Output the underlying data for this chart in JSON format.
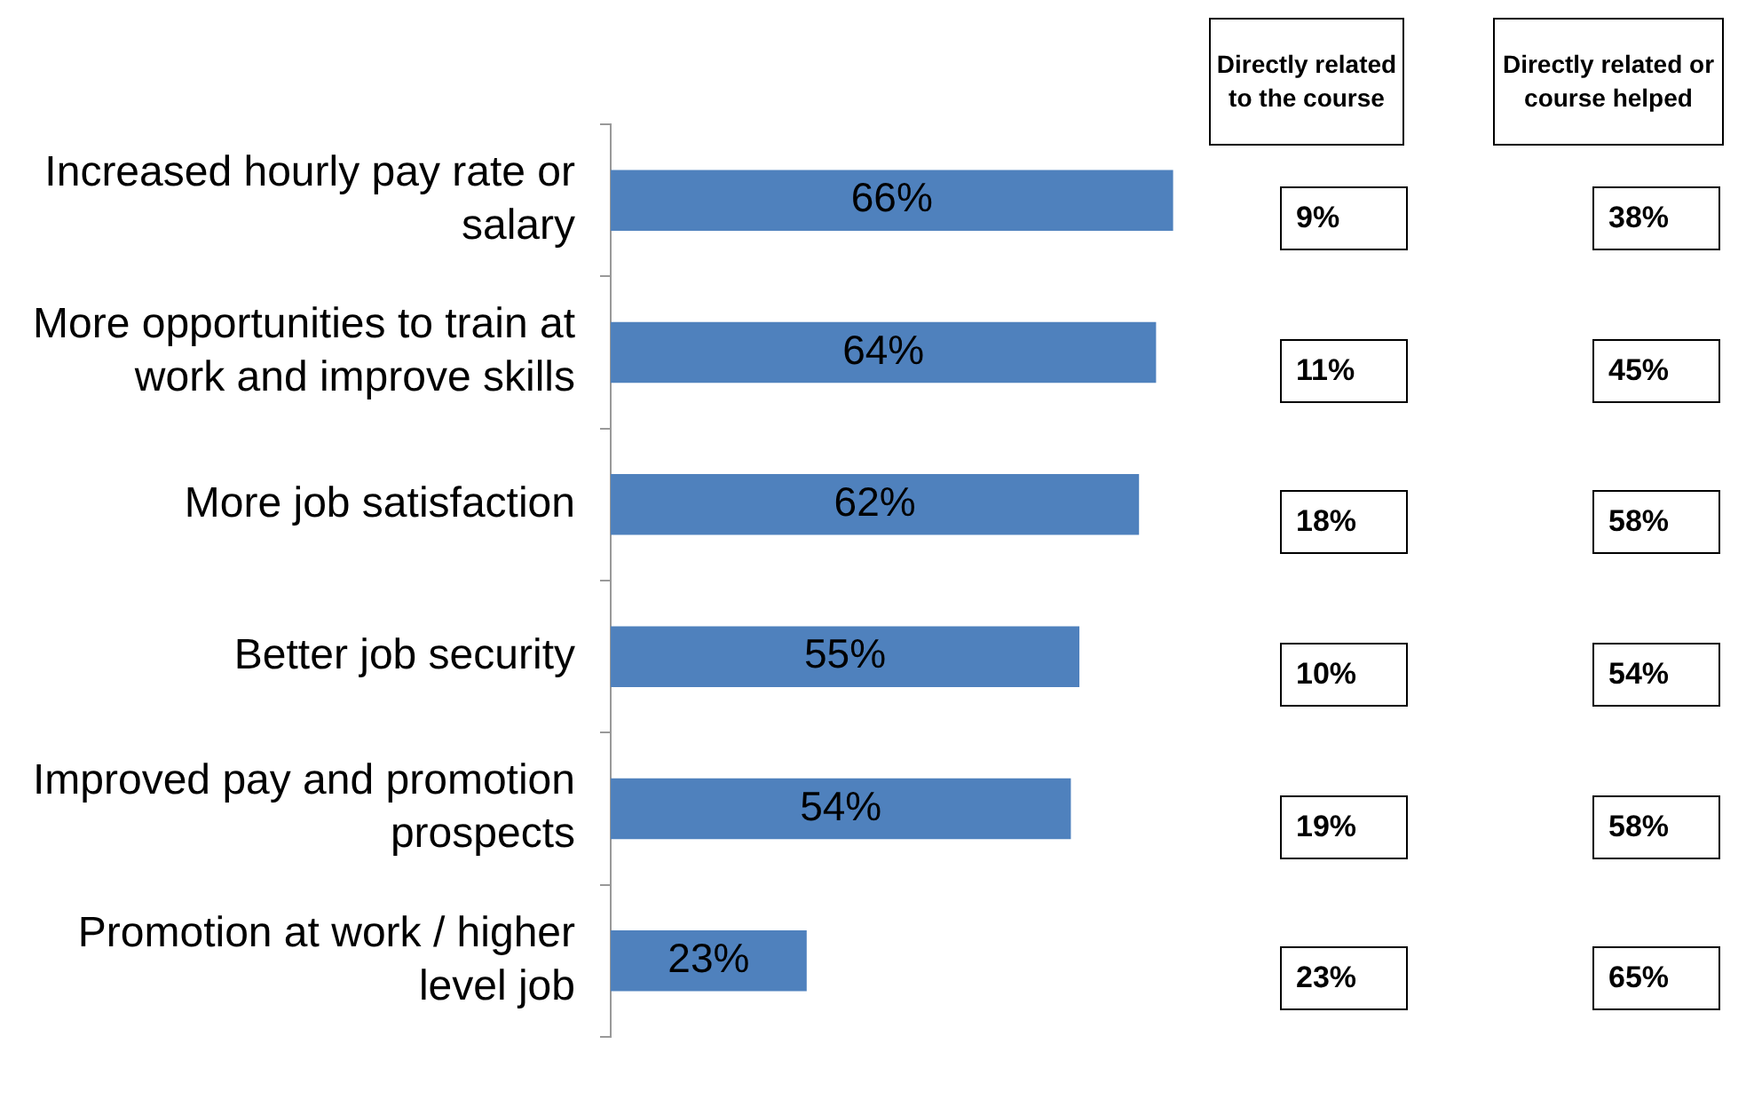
{
  "chart_data": [
    {
      "type": "bar",
      "orientation": "horizontal",
      "categories": [
        "Increased hourly pay rate or salary",
        "More opportunities to train at work and improve skills",
        "More job satisfaction",
        "Better job security",
        "Improved pay and promotion prospects",
        "Promotion at work / higher level job"
      ],
      "values": [
        66,
        64,
        62,
        55,
        54,
        23
      ],
      "value_labels": [
        "66%",
        "64%",
        "62%",
        "55%",
        "54%",
        "23%"
      ],
      "color": "#4f81bd",
      "grid": false,
      "legend": false
    },
    {
      "type": "other",
      "categories": [
        "Directly related to the course",
        "Directly related or course helped"
      ],
      "cell_labels": [
        [
          "9%",
          "38%"
        ],
        [
          "11%",
          "45%"
        ],
        [
          "18%",
          "58%"
        ],
        [
          "10%",
          "54%"
        ],
        [
          "19%",
          "58%"
        ],
        [
          "23%",
          "65%"
        ]
      ]
    }
  ]
}
